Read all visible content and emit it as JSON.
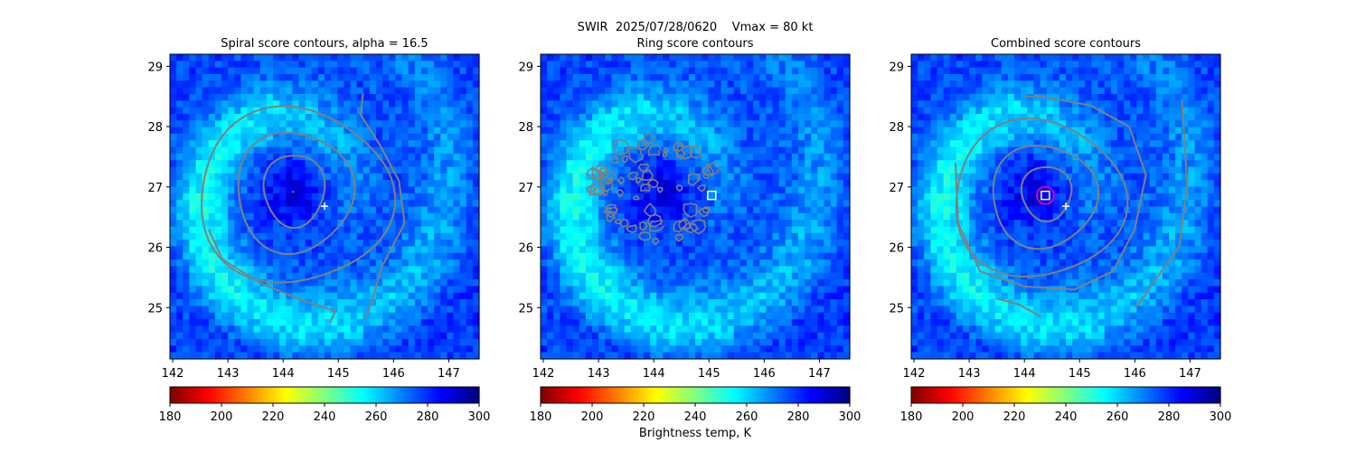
{
  "figure": {
    "suptitle": "SWIR  2025/07/28/0620    Vmax = 80 kt",
    "colorbar_label": "Brightness temp, K"
  },
  "colormap": {
    "name": "jet",
    "reversed": true,
    "range": [
      180,
      300
    ],
    "ticks": [
      180,
      200,
      220,
      240,
      260,
      280,
      300
    ]
  },
  "chart_data": [
    {
      "type": "heatmap",
      "title": "Spiral score contours, alpha = 16.5",
      "xlim": [
        141.95,
        147.55
      ],
      "ylim": [
        24.15,
        29.2
      ],
      "xticks": [
        142,
        143,
        144,
        145,
        146,
        147
      ],
      "yticks": [
        25,
        26,
        27,
        28,
        29
      ],
      "value_range_K": [
        180,
        300
      ],
      "contour_color": "#808080",
      "contours": [
        {
          "kind": "closed",
          "center": [
            144.2,
            26.95
          ],
          "rx": 0.55,
          "ry": 0.6
        },
        {
          "kind": "closed",
          "center": [
            144.2,
            26.92
          ],
          "rx": 1.05,
          "ry": 1.0
        },
        {
          "kind": "closed",
          "center": [
            144.2,
            26.85
          ],
          "rx": 1.75,
          "ry": 1.45
        },
        {
          "kind": "arc",
          "points": [
            [
              145.45,
              28.55
            ],
            [
              145.4,
              28.2
            ],
            [
              145.75,
              27.7
            ],
            [
              146.1,
              27.1
            ],
            [
              146.2,
              26.4
            ],
            [
              145.8,
              25.7
            ],
            [
              145.55,
              24.95
            ],
            [
              145.45,
              24.8
            ]
          ]
        },
        {
          "kind": "arc",
          "points": [
            [
              142.65,
              26.3
            ],
            [
              142.9,
              25.8
            ],
            [
              143.6,
              25.4
            ],
            [
              144.4,
              25.1
            ],
            [
              144.95,
              24.95
            ],
            [
              144.85,
              24.75
            ]
          ]
        }
      ],
      "markers": [
        {
          "type": "plus",
          "lon": 144.75,
          "lat": 26.68,
          "color": "#ffffff"
        },
        {
          "type": "dot",
          "lon": 144.18,
          "lat": 26.92,
          "color": "#ff5500"
        }
      ]
    },
    {
      "type": "heatmap",
      "title": "Ring score contours",
      "xlim": [
        141.95,
        147.55
      ],
      "ylim": [
        24.15,
        29.2
      ],
      "xticks": [
        142,
        143,
        144,
        145,
        146,
        147
      ],
      "yticks": [
        25,
        26,
        27,
        28,
        29
      ],
      "value_range_K": [
        180,
        300
      ],
      "contour_color": "#808080",
      "contour_region": {
        "center": [
          144.0,
          26.95
        ],
        "rx": 1.2,
        "ry": 0.85
      },
      "markers": [
        {
          "type": "square",
          "lon": 145.05,
          "lat": 26.86,
          "color": "#ffffff"
        }
      ]
    },
    {
      "type": "heatmap",
      "title": "Combined score contours",
      "xlim": [
        141.95,
        147.55
      ],
      "ylim": [
        24.15,
        29.2
      ],
      "xticks": [
        142,
        143,
        144,
        145,
        146,
        147
      ],
      "yticks": [
        25,
        26,
        27,
        28,
        29
      ],
      "value_range_K": [
        180,
        300
      ],
      "contour_color": "#808080",
      "contours": [
        {
          "kind": "closed",
          "center": [
            144.4,
            26.9
          ],
          "rx": 0.45,
          "ry": 0.45
        },
        {
          "kind": "closed",
          "center": [
            144.35,
            26.85
          ],
          "rx": 0.95,
          "ry": 0.85
        },
        {
          "kind": "closed",
          "center": [
            144.25,
            26.8
          ],
          "rx": 1.55,
          "ry": 1.3
        },
        {
          "kind": "arc",
          "points": [
            [
              142.75,
              27.4
            ],
            [
              142.8,
              26.4
            ],
            [
              143.2,
              25.6
            ],
            [
              144.0,
              25.35
            ],
            [
              144.9,
              25.3
            ],
            [
              145.6,
              25.6
            ],
            [
              146.0,
              26.3
            ],
            [
              146.2,
              27.2
            ],
            [
              145.9,
              28.0
            ],
            [
              145.2,
              28.35
            ],
            [
              144.3,
              28.5
            ],
            [
              144.0,
              28.5
            ]
          ]
        },
        {
          "kind": "arc",
          "points": [
            [
              146.85,
              28.45
            ],
            [
              146.9,
              27.8
            ],
            [
              146.95,
              27.0
            ],
            [
              146.8,
              26.0
            ],
            [
              146.4,
              25.5
            ],
            [
              146.1,
              25.1
            ],
            [
              146.0,
              25.0
            ]
          ]
        },
        {
          "kind": "arc",
          "points": [
            [
              143.5,
              25.15
            ],
            [
              143.9,
              25.05
            ],
            [
              144.3,
              24.85
            ]
          ]
        }
      ],
      "markers": [
        {
          "type": "plus",
          "lon": 144.75,
          "lat": 26.68,
          "color": "#ffffff"
        },
        {
          "type": "square",
          "lon": 144.38,
          "lat": 26.86,
          "color": "#ffffff"
        },
        {
          "type": "circle",
          "lon": 144.38,
          "lat": 26.86,
          "color": "#cc00cc"
        }
      ]
    }
  ]
}
